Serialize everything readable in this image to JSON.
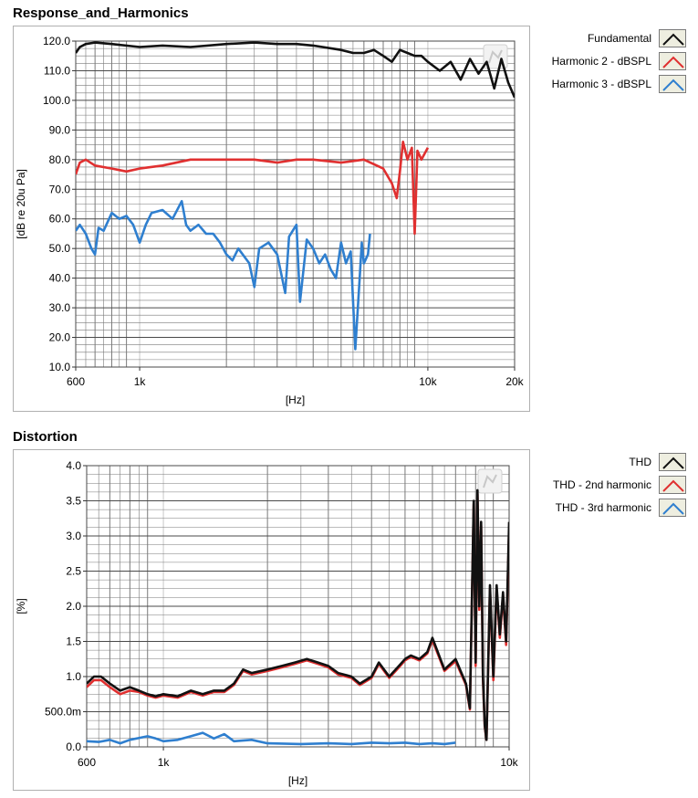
{
  "charts": {
    "response": {
      "title": "Response_and_Harmonics"
    },
    "distortion": {
      "title": "Distortion"
    }
  },
  "colors": {
    "black": "#111111",
    "red": "#e03030",
    "blue": "#2f7fcf",
    "grid_major": "#4a4a4a",
    "grid_minor": "#7a7a7a",
    "grid_dim": "#c8c8c8"
  },
  "chart_data": [
    {
      "type": "line",
      "title": "Response_and_Harmonics",
      "xlabel": "[Hz]",
      "ylabel": "[dB re 20u Pa]",
      "x_scale": "log",
      "xlim": [
        600,
        20000
      ],
      "ylim": [
        10,
        120
      ],
      "x_tick_values": [
        600,
        1000,
        10000,
        20000
      ],
      "x_tick_labels": [
        "600",
        "1k",
        "10k",
        "20k"
      ],
      "y_tick_values": [
        10,
        20,
        30,
        40,
        50,
        60,
        70,
        80,
        90,
        100,
        110,
        120
      ],
      "y_tick_labels": [
        "10.0",
        "20.0",
        "30.0",
        "40.0",
        "50.0",
        "60.0",
        "70.0",
        "80.0",
        "90.0",
        "100.0",
        "110.0",
        "120.0"
      ],
      "grid": true,
      "legend_position": "right",
      "series": [
        {
          "name": "Fundamental",
          "color": "black",
          "x": [
            600,
            620,
            650,
            700,
            800,
            1000,
            1200,
            1500,
            2000,
            2500,
            3000,
            3500,
            4000,
            5000,
            5500,
            6000,
            6500,
            7000,
            7500,
            8000,
            8500,
            9000,
            9500,
            10000,
            11000,
            12000,
            13000,
            14000,
            15000,
            16000,
            17000,
            18000,
            19000,
            20000
          ],
          "y": [
            116,
            118,
            119,
            119.5,
            119,
            118,
            118.5,
            118,
            119,
            119.5,
            119,
            119,
            118.5,
            117,
            116,
            116,
            117,
            115,
            113,
            117,
            116,
            115,
            115,
            113,
            110,
            113,
            107,
            114,
            109,
            113,
            104,
            114,
            106,
            101
          ]
        },
        {
          "name": "Harmonic 2 - dBSPL",
          "color": "red",
          "x": [
            600,
            620,
            650,
            700,
            800,
            900,
            1000,
            1200,
            1500,
            2000,
            2500,
            3000,
            3500,
            4000,
            5000,
            6000,
            7000,
            7500,
            7800,
            8000,
            8200,
            8500,
            8800,
            9000,
            9200,
            9500,
            10000
          ],
          "y": [
            75,
            79,
            80,
            78,
            77,
            76,
            77,
            78,
            80,
            80,
            80,
            79,
            80,
            80,
            79,
            80,
            77,
            72,
            67,
            76,
            86,
            80,
            84,
            55,
            83,
            80,
            84
          ]
        },
        {
          "name": "Harmonic 3 - dBSPL",
          "color": "blue",
          "x": [
            600,
            620,
            650,
            680,
            700,
            720,
            750,
            800,
            850,
            900,
            950,
            1000,
            1050,
            1100,
            1200,
            1300,
            1400,
            1450,
            1500,
            1600,
            1700,
            1800,
            1900,
            2000,
            2100,
            2200,
            2400,
            2500,
            2600,
            2800,
            3000,
            3200,
            3300,
            3500,
            3600,
            3800,
            4000,
            4200,
            4400,
            4600,
            4800,
            5000,
            5200,
            5400,
            5600,
            5800,
            5900,
            6000,
            6200,
            6300
          ],
          "y": [
            56,
            58,
            55,
            50,
            48,
            57,
            56,
            62,
            60,
            61,
            58,
            52,
            58,
            62,
            63,
            60,
            66,
            58,
            56,
            58,
            55,
            55,
            52,
            48,
            46,
            50,
            45,
            37,
            50,
            52,
            48,
            35,
            54,
            58,
            32,
            53,
            50,
            45,
            48,
            43,
            40,
            52,
            45,
            49,
            16,
            40,
            52,
            45,
            48,
            55
          ]
        }
      ]
    },
    {
      "type": "line",
      "title": "Distortion",
      "xlabel": "[Hz]",
      "ylabel": "[%]",
      "x_scale": "log",
      "xlim": [
        600,
        10000
      ],
      "ylim": [
        0,
        4
      ],
      "x_tick_values": [
        600,
        1000,
        10000
      ],
      "x_tick_labels": [
        "600",
        "1k",
        "10k"
      ],
      "y_tick_values": [
        0,
        0.5,
        1,
        1.5,
        2,
        2.5,
        3,
        3.5,
        4
      ],
      "y_tick_labels": [
        "0.0",
        "500.0m",
        "1.0",
        "1.5",
        "2.0",
        "2.5",
        "3.0",
        "3.5",
        "4.0"
      ],
      "grid": true,
      "legend_position": "right",
      "series": [
        {
          "name": "THD",
          "color": "black",
          "x": [
            600,
            630,
            660,
            700,
            750,
            800,
            850,
            900,
            950,
            1000,
            1100,
            1200,
            1300,
            1400,
            1500,
            1600,
            1700,
            1800,
            2000,
            2200,
            2400,
            2600,
            2800,
            3000,
            3200,
            3500,
            3700,
            4000,
            4200,
            4500,
            4800,
            5000,
            5200,
            5500,
            5800,
            6000,
            6500,
            7000,
            7500,
            7700,
            7900,
            8000,
            8100,
            8200,
            8300,
            8400,
            8500,
            8600,
            8800,
            9000,
            9200,
            9400,
            9600,
            9800,
            10000
          ],
          "y": [
            0.9,
            1.0,
            1.0,
            0.9,
            0.8,
            0.85,
            0.8,
            0.75,
            0.72,
            0.75,
            0.72,
            0.8,
            0.75,
            0.8,
            0.8,
            0.9,
            1.1,
            1.05,
            1.1,
            1.15,
            1.2,
            1.25,
            1.2,
            1.15,
            1.05,
            1.0,
            0.9,
            1.0,
            1.2,
            1.0,
            1.15,
            1.25,
            1.3,
            1.25,
            1.35,
            1.55,
            1.1,
            1.25,
            0.9,
            0.55,
            3.5,
            1.2,
            3.65,
            2.0,
            3.2,
            1.0,
            0.3,
            0.1,
            2.3,
            1.0,
            2.3,
            1.6,
            2.2,
            1.5,
            3.2
          ]
        },
        {
          "name": "THD - 2nd harmonic",
          "color": "red",
          "x": [
            600,
            630,
            660,
            700,
            750,
            800,
            850,
            900,
            950,
            1000,
            1100,
            1200,
            1300,
            1400,
            1500,
            1600,
            1700,
            1800,
            2000,
            2200,
            2400,
            2600,
            2800,
            3000,
            3200,
            3500,
            3700,
            4000,
            4200,
            4500,
            4800,
            5000,
            5200,
            5500,
            5800,
            6000,
            6500,
            7000,
            7500,
            7700,
            7900,
            8000,
            8100,
            8200,
            8300,
            8400,
            8500,
            8600,
            8800,
            9000,
            9200,
            9400,
            9600,
            9800,
            10000
          ],
          "y": [
            0.85,
            0.95,
            0.95,
            0.85,
            0.75,
            0.8,
            0.78,
            0.73,
            0.7,
            0.73,
            0.7,
            0.78,
            0.73,
            0.78,
            0.78,
            0.88,
            1.08,
            1.03,
            1.08,
            1.13,
            1.18,
            1.23,
            1.18,
            1.13,
            1.03,
            0.98,
            0.88,
            0.98,
            1.18,
            0.98,
            1.13,
            1.23,
            1.28,
            1.23,
            1.33,
            1.52,
            1.08,
            1.22,
            0.88,
            0.53,
            3.45,
            1.15,
            3.6,
            1.95,
            3.15,
            0.95,
            0.28,
            0.1,
            2.25,
            0.95,
            2.25,
            1.55,
            2.15,
            1.45,
            3.1
          ]
        },
        {
          "name": "THD - 3rd harmonic",
          "color": "blue",
          "x": [
            600,
            650,
            700,
            750,
            800,
            900,
            950,
            1000,
            1100,
            1200,
            1300,
            1400,
            1500,
            1600,
            1800,
            2000,
            2500,
            3000,
            3500,
            4000,
            4500,
            5000,
            5500,
            6000,
            6500,
            7000
          ],
          "y": [
            0.08,
            0.07,
            0.1,
            0.05,
            0.1,
            0.15,
            0.12,
            0.08,
            0.1,
            0.15,
            0.2,
            0.12,
            0.18,
            0.08,
            0.1,
            0.05,
            0.04,
            0.05,
            0.04,
            0.06,
            0.05,
            0.06,
            0.04,
            0.05,
            0.04,
            0.06
          ]
        }
      ]
    }
  ]
}
